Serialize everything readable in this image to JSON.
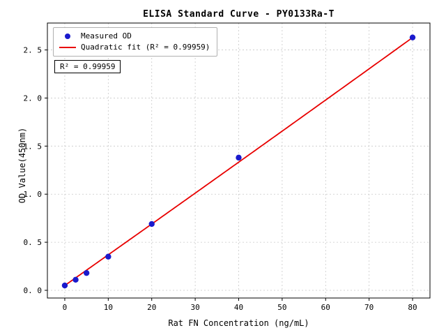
{
  "chart": {
    "title": "ELISA Standard Curve - PY0133Ra-T",
    "xlabel": "Rat FN Concentration (ng/mL)",
    "ylabel": "OD Value(450nm)",
    "legend": {
      "measured": "Measured OD",
      "fit": "Quadratic fit (R² = 0.99959)"
    },
    "annotation": "R² = 0.99959"
  },
  "chart_data": {
    "type": "scatter",
    "title": "ELISA Standard Curve - PY0133Ra-T",
    "xlabel": "Rat FN Concentration (ng/mL)",
    "ylabel": "OD Value(450nm)",
    "xlim": [
      -4,
      84
    ],
    "ylim": [
      -0.08,
      2.78
    ],
    "x_ticks": [
      0,
      10,
      20,
      30,
      40,
      50,
      60,
      70,
      80
    ],
    "x_tick_labels": [
      "0",
      "10",
      "20",
      "30",
      "40",
      "50",
      "60",
      "70",
      "80"
    ],
    "y_ticks": [
      0.0,
      0.5,
      1.0,
      1.5,
      2.0,
      2.5
    ],
    "y_tick_labels": [
      "0. 0",
      "0. 5",
      "1. 0",
      "1. 5",
      "2. 0",
      "2. 5"
    ],
    "grid": true,
    "legend_position": "upper left",
    "r_squared": 0.99959,
    "series": [
      {
        "name": "Measured OD",
        "type": "scatter",
        "color": "#1a1acd",
        "x": [
          0,
          2.5,
          5,
          10,
          20,
          40,
          80
        ],
        "y": [
          0.05,
          0.11,
          0.18,
          0.35,
          0.69,
          1.38,
          2.63
        ]
      },
      {
        "name": "Quadratic fit (R² = 0.99959)",
        "type": "line",
        "color": "#e80000",
        "fit_coefficients": {
          "a": 0.05,
          "b": 0.0319,
          "c": 4.2e-06
        },
        "x_range": [
          0,
          80
        ]
      }
    ],
    "colors": {
      "grid": "#c8c8c8",
      "axis": "#000000",
      "background": "#ffffff"
    }
  }
}
